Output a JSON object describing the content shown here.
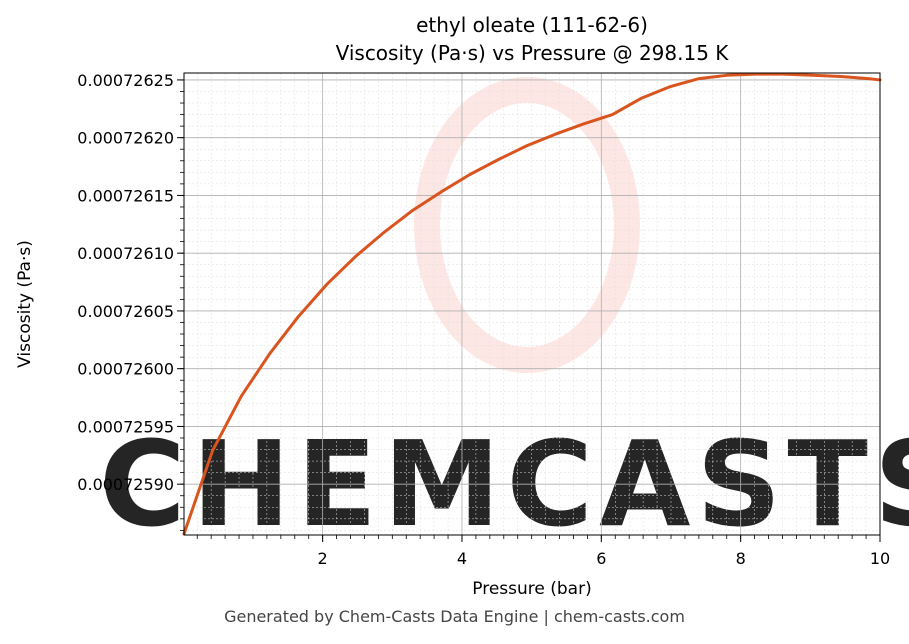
{
  "chart_data": {
    "type": "line",
    "title_line1": "ethyl oleate (111-62-6)",
    "title_line2": "Viscosity (Pa·s) vs Pressure @ 298.15 K",
    "xlabel": "Pressure (bar)",
    "ylabel": "Viscosity (Pa·s)",
    "xlim": [
      0.01,
      10
    ],
    "ylim": [
      0.000725856,
      0.000726256
    ],
    "xticks": [
      2,
      4,
      6,
      8,
      10
    ],
    "xtick_labels": [
      "2",
      "4",
      "6",
      "8",
      "10"
    ],
    "yticks": [
      0.0007259,
      0.00072595,
      0.000726,
      0.00072605,
      0.0007261,
      0.00072615,
      0.0007262,
      0.00072625
    ],
    "ytick_labels": [
      "0.00072590",
      "0.00072595",
      "0.00072600",
      "0.00072605",
      "0.00072610",
      "0.00072615",
      "0.00072620",
      "0.00072625"
    ],
    "grid": true,
    "line_color": "#d9541e",
    "series": [
      {
        "x": [
          0.01,
          0.42,
          0.83,
          1.24,
          1.65,
          2.06,
          2.47,
          2.88,
          3.29,
          3.7,
          4.11,
          4.52,
          4.93,
          5.34,
          5.75,
          6.16,
          6.57,
          6.98,
          7.39,
          7.8,
          8.21,
          8.62,
          9.03,
          9.44,
          9.85,
          10.0
        ],
        "y": [
          0.000725857,
          0.000725929,
          0.000725976,
          0.000726013,
          0.000726045,
          0.000726073,
          0.000726097,
          0.000726118,
          0.000726137,
          0.000726153,
          0.000726168,
          0.000726181,
          0.000726193,
          0.000726203,
          0.000726212,
          0.00072622,
          0.000726234,
          0.000726244,
          0.000726251,
          0.000726254,
          0.000726255,
          0.000726255,
          0.000726254,
          0.000726253,
          0.000726251,
          0.00072625
        ]
      }
    ]
  },
  "watermark": {
    "text": "CHEMCASTS",
    "color": "#fde3df"
  },
  "footer": "Generated by Chem-Casts Data Engine | chem-casts.com"
}
